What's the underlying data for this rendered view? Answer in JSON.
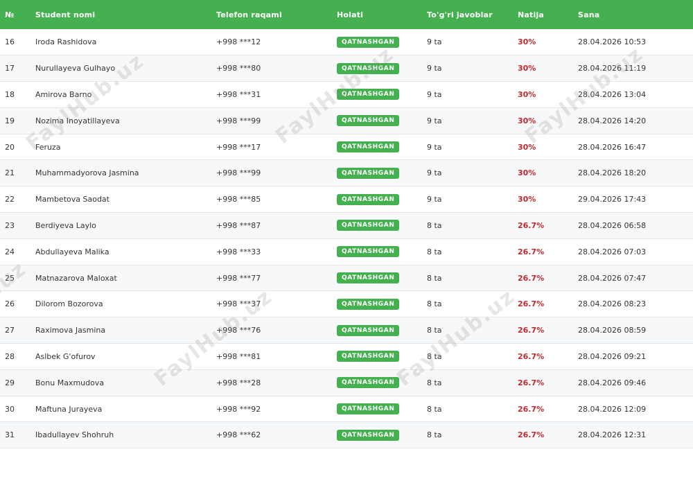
{
  "table": {
    "headers": [
      "№",
      "Student nomi",
      "Telefon raqami",
      "Holati",
      "To'g'ri javoblar",
      "Natija",
      "Sana"
    ],
    "rows": [
      {
        "num": "16",
        "name": "Iroda Rashidova",
        "phone": "+998 ***12",
        "status": "QATNASHGAN",
        "correct": "9 ta",
        "result": "30%",
        "date": "28.04.2026 10:53"
      },
      {
        "num": "17",
        "name": "Nurullayeva Gulhayo",
        "phone": "+998 ***80",
        "status": "QATNASHGAN",
        "correct": "9 ta",
        "result": "30%",
        "date": "28.04.2026 11:19"
      },
      {
        "num": "18",
        "name": "Amirova Barno",
        "phone": "+998 ***31",
        "status": "QATNASHGAN",
        "correct": "9 ta",
        "result": "30%",
        "date": "28.04.2026 13:04"
      },
      {
        "num": "19",
        "name": "Nozima Inoyatillayeva",
        "phone": "+998 ***99",
        "status": "QATNASHGAN",
        "correct": "9 ta",
        "result": "30%",
        "date": "28.04.2026 14:20"
      },
      {
        "num": "20",
        "name": "Feruza",
        "phone": "+998 ***17",
        "status": "QATNASHGAN",
        "correct": "9 ta",
        "result": "30%",
        "date": "28.04.2026 16:47"
      },
      {
        "num": "21",
        "name": "Muhammadyorova Jasmina",
        "phone": "+998 ***99",
        "status": "QATNASHGAN",
        "correct": "9 ta",
        "result": "30%",
        "date": "28.04.2026 18:20"
      },
      {
        "num": "22",
        "name": "Mambetova Saodat",
        "phone": "+998 ***85",
        "status": "QATNASHGAN",
        "correct": "9 ta",
        "result": "30%",
        "date": "29.04.2026 17:43"
      },
      {
        "num": "23",
        "name": "Berdiyeva Laylo",
        "phone": "+998 ***87",
        "status": "QATNASHGAN",
        "correct": "8 ta",
        "result": "26.7%",
        "date": "28.04.2026 06:58"
      },
      {
        "num": "24",
        "name": "Abdullayeva Malika",
        "phone": "+998 ***33",
        "status": "QATNASHGAN",
        "correct": "8 ta",
        "result": "26.7%",
        "date": "28.04.2026 07:03"
      },
      {
        "num": "25",
        "name": "Matnazarova Maloxat",
        "phone": "+998 ***77",
        "status": "QATNASHGAN",
        "correct": "8 ta",
        "result": "26.7%",
        "date": "28.04.2026 07:47"
      },
      {
        "num": "26",
        "name": "Dilorom Bozorova",
        "phone": "+998 ***37",
        "status": "QATNASHGAN",
        "correct": "8 ta",
        "result": "26.7%",
        "date": "28.04.2026 08:23"
      },
      {
        "num": "27",
        "name": "Raximova Jasmina",
        "phone": "+998 ***76",
        "status": "QATNASHGAN",
        "correct": "8 ta",
        "result": "26.7%",
        "date": "28.04.2026 08:59"
      },
      {
        "num": "28",
        "name": "Aslbek G'ofurov",
        "phone": "+998 ***81",
        "status": "QATNASHGAN",
        "correct": "8 ta",
        "result": "26.7%",
        "date": "28.04.2026 09:21"
      },
      {
        "num": "29",
        "name": "Bonu Maxmudova",
        "phone": "+998 ***28",
        "status": "QATNASHGAN",
        "correct": "8 ta",
        "result": "26.7%",
        "date": "28.04.2026 09:46"
      },
      {
        "num": "30",
        "name": "Maftuna Jurayeva",
        "phone": "+998 ***92",
        "status": "QATNASHGAN",
        "correct": "8 ta",
        "result": "26.7%",
        "date": "28.04.2026 12:09"
      },
      {
        "num": "31",
        "name": "Ibadullayev Shohruh",
        "phone": "+998 ***62",
        "status": "QATNASHGAN",
        "correct": "8 ta",
        "result": "26.7%",
        "date": "28.04.2026 12:31"
      }
    ]
  },
  "watermark": "FaylHub.uz",
  "colors": {
    "header_bg": "#45b04f",
    "badge_bg": "#45b04f",
    "result_text": "#c0282d"
  }
}
